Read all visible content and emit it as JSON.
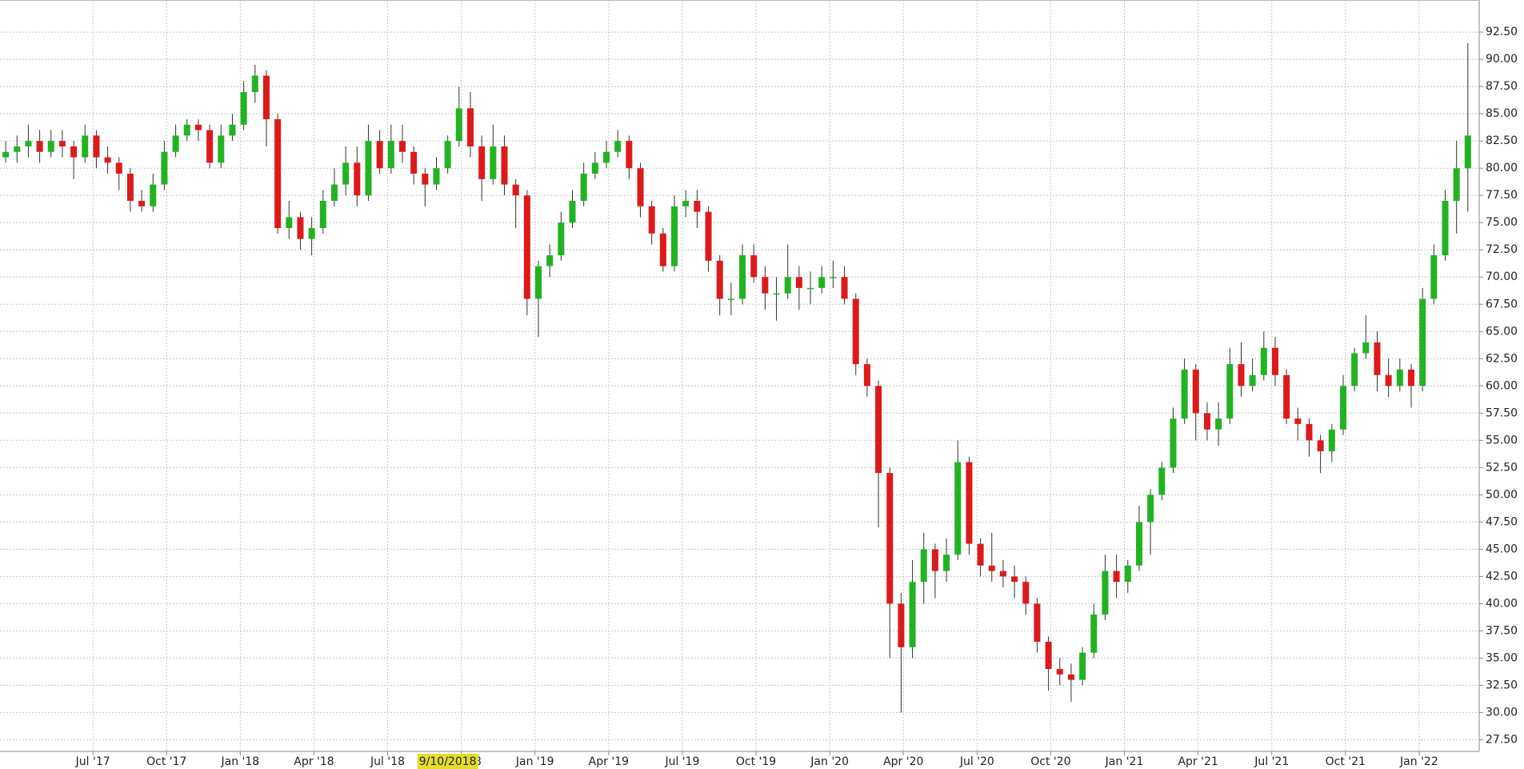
{
  "chart_data": {
    "type": "candlestick",
    "colors": {
      "up": "#22b322",
      "down": "#dd1a1a"
    },
    "grid": true,
    "xlim": [
      0,
      261
    ],
    "ylim": [
      26.43,
      95.45
    ],
    "yticks": [
      {
        "value": 27.5,
        "label": "27.50"
      },
      {
        "value": 30,
        "label": "30.00"
      },
      {
        "value": 32.5,
        "label": "32.50"
      },
      {
        "value": 35,
        "label": "35.00"
      },
      {
        "value": 37.5,
        "label": "37.50"
      },
      {
        "value": 40,
        "label": "40.00"
      },
      {
        "value": 42.5,
        "label": "42.50"
      },
      {
        "value": 45,
        "label": "45.00"
      },
      {
        "value": 47.5,
        "label": "47.50"
      },
      {
        "value": 50,
        "label": "50.00"
      },
      {
        "value": 52.5,
        "label": "52.50"
      },
      {
        "value": 55,
        "label": "55.00"
      },
      {
        "value": 57.5,
        "label": "57.50"
      },
      {
        "value": 60,
        "label": "60.00"
      },
      {
        "value": 62.5,
        "label": "62.50"
      },
      {
        "value": 65,
        "label": "65.00"
      },
      {
        "value": 67.5,
        "label": "67.50"
      },
      {
        "value": 70,
        "label": "70.00"
      },
      {
        "value": 72.5,
        "label": "72.50"
      },
      {
        "value": 75,
        "label": "75.00"
      },
      {
        "value": 77.5,
        "label": "77.50"
      },
      {
        "value": 80,
        "label": "80.00"
      },
      {
        "value": 82.5,
        "label": "82.50"
      },
      {
        "value": 85,
        "label": "85.00"
      },
      {
        "value": 87.5,
        "label": "87.50"
      },
      {
        "value": 90,
        "label": "90.00"
      },
      {
        "value": 92.5,
        "label": "92.50"
      }
    ],
    "xticks": [
      {
        "value": 16.4,
        "label": "Jul '17"
      },
      {
        "value": 29.4,
        "label": "Oct '17"
      },
      {
        "value": 42.4,
        "label": "Jan '18"
      },
      {
        "value": 55.4,
        "label": "Apr '18"
      },
      {
        "value": 68.4,
        "label": "Jul '18"
      },
      {
        "value": 81.4,
        "label": "Oct '18"
      },
      {
        "value": 94.4,
        "label": "Jan '19"
      },
      {
        "value": 107.4,
        "label": "Apr '19"
      },
      {
        "value": 120.4,
        "label": "Jul '19"
      },
      {
        "value": 133.4,
        "label": "Oct '19"
      },
      {
        "value": 146.4,
        "label": "Jan '20"
      },
      {
        "value": 159.4,
        "label": "Apr '20"
      },
      {
        "value": 172.4,
        "label": "Jul '20"
      },
      {
        "value": 185.4,
        "label": "Oct '20"
      },
      {
        "value": 198.4,
        "label": "Jan '21"
      },
      {
        "value": 211.4,
        "label": "Apr '21"
      },
      {
        "value": 224.4,
        "label": "Jul '21"
      },
      {
        "value": 237.4,
        "label": "Oct '21"
      },
      {
        "value": 250.4,
        "label": "Jan '22"
      }
    ],
    "cursor": {
      "x": 79,
      "label": "9/10/2018"
    },
    "x": [
      1,
      3,
      5,
      7,
      9,
      11,
      13,
      15,
      17,
      19,
      21,
      23,
      25,
      27,
      29,
      31,
      33,
      35,
      37,
      39,
      41,
      43,
      45,
      47,
      49,
      51,
      53,
      55,
      57,
      59,
      61,
      63,
      65,
      67,
      69,
      71,
      73,
      75,
      77,
      79,
      81,
      83,
      85,
      87,
      89,
      91,
      93,
      95,
      97,
      99,
      101,
      103,
      105,
      107,
      109,
      111,
      113,
      115,
      117,
      119,
      121,
      123,
      125,
      127,
      129,
      131,
      133,
      135,
      137,
      139,
      141,
      143,
      145,
      147,
      149,
      151,
      153,
      155,
      157,
      159,
      161,
      163,
      165,
      167,
      169,
      171,
      173,
      175,
      177,
      179,
      181,
      183,
      185,
      187,
      189,
      191,
      193,
      195,
      197,
      199,
      201,
      203,
      205,
      207,
      209,
      211,
      213,
      215,
      217,
      219,
      221,
      223,
      225,
      227,
      229,
      231,
      233,
      235,
      237,
      239,
      241,
      243,
      245,
      247,
      249,
      251,
      253,
      255,
      257,
      259
    ],
    "ohlc": [
      [
        81,
        82.5,
        80.5,
        81.5
      ],
      [
        81.5,
        83,
        80.5,
        82
      ],
      [
        82,
        84,
        81,
        82.5
      ],
      [
        82.5,
        83.5,
        80.5,
        81.5
      ],
      [
        81.5,
        83.5,
        81,
        82.5
      ],
      [
        82.5,
        83.5,
        81,
        82
      ],
      [
        82,
        82.5,
        79,
        81
      ],
      [
        81,
        84,
        80.5,
        83
      ],
      [
        83,
        83.5,
        80,
        81
      ],
      [
        81,
        82,
        79.5,
        80.5
      ],
      [
        80.5,
        81,
        78,
        79.5
      ],
      [
        79.5,
        80,
        76,
        77
      ],
      [
        77,
        78,
        76,
        76.5
      ],
      [
        76.5,
        79.5,
        76,
        78.5
      ],
      [
        78.5,
        82.5,
        78,
        81.5
      ],
      [
        81.5,
        84,
        81,
        83
      ],
      [
        83,
        84.5,
        82.5,
        84
      ],
      [
        84,
        84.5,
        82.5,
        83.5
      ],
      [
        83.5,
        84,
        80,
        80.5
      ],
      [
        80.5,
        84,
        80,
        83
      ],
      [
        83,
        85,
        82.5,
        84
      ],
      [
        84,
        88,
        83.5,
        87
      ],
      [
        87,
        89.5,
        86,
        88.5
      ],
      [
        88.5,
        89,
        82,
        84.5
      ],
      [
        84.5,
        85,
        74,
        74.5
      ],
      [
        74.5,
        77,
        73.5,
        75.5
      ],
      [
        75.5,
        76,
        72.5,
        73.5
      ],
      [
        73.5,
        75.5,
        72,
        74.5
      ],
      [
        74.5,
        78,
        74,
        77
      ],
      [
        77,
        80,
        76.5,
        78.5
      ],
      [
        78.5,
        82,
        77.5,
        80.5
      ],
      [
        80.5,
        82,
        76.5,
        77.5
      ],
      [
        77.5,
        84,
        77,
        82.5
      ],
      [
        82.5,
        83.5,
        79.5,
        80
      ],
      [
        80,
        84,
        79.5,
        82.5
      ],
      [
        82.5,
        84,
        80.5,
        81.5
      ],
      [
        81.5,
        82,
        78.5,
        79.5
      ],
      [
        79.5,
        80,
        76.5,
        78.5
      ],
      [
        78.5,
        81,
        78,
        80
      ],
      [
        80,
        83,
        79.5,
        82.5
      ],
      [
        82.5,
        87.5,
        82,
        85.5
      ],
      [
        85.5,
        87,
        81,
        82
      ],
      [
        82,
        83,
        77,
        79
      ],
      [
        79,
        84,
        78.5,
        82
      ],
      [
        82,
        83,
        77.5,
        78.5
      ],
      [
        78.5,
        79,
        74.5,
        77.5
      ],
      [
        77.5,
        78,
        66.5,
        68
      ],
      [
        68,
        71.5,
        64.5,
        71
      ],
      [
        71,
        73,
        70,
        72
      ],
      [
        72,
        76,
        71.5,
        75
      ],
      [
        75,
        78,
        74.5,
        77
      ],
      [
        77,
        80.5,
        76.5,
        79.5
      ],
      [
        79.5,
        81.5,
        79,
        80.5
      ],
      [
        80.5,
        82.5,
        80,
        81.5
      ],
      [
        81.5,
        83.5,
        81,
        82.5
      ],
      [
        82.5,
        83,
        79,
        80
      ],
      [
        80,
        80.5,
        75.5,
        76.5
      ],
      [
        76.5,
        77,
        73,
        74
      ],
      [
        74,
        74.5,
        70.5,
        71
      ],
      [
        71,
        77.5,
        70.5,
        76.5
      ],
      [
        76.5,
        78,
        75.5,
        77
      ],
      [
        77,
        78,
        74.5,
        76
      ],
      [
        76,
        76.5,
        70.5,
        71.5
      ],
      [
        71.5,
        72,
        66.5,
        68
      ],
      [
        68,
        69.5,
        66.5,
        68
      ],
      [
        68,
        73,
        67.5,
        72
      ],
      [
        72,
        73,
        69.5,
        70
      ],
      [
        70,
        71,
        67,
        68.5
      ],
      [
        68.5,
        70,
        66,
        68.5
      ],
      [
        68.5,
        73,
        68,
        70
      ],
      [
        70,
        71,
        67,
        69
      ],
      [
        69,
        70.5,
        67.5,
        69
      ],
      [
        69,
        71,
        68.5,
        70
      ],
      [
        70,
        71.5,
        69,
        70
      ],
      [
        70,
        71,
        67.5,
        68
      ],
      [
        68,
        68.5,
        61,
        62
      ],
      [
        62,
        62.5,
        59,
        60
      ],
      [
        60,
        60.5,
        47,
        52
      ],
      [
        52,
        52.5,
        35,
        40
      ],
      [
        40,
        41,
        30,
        36
      ],
      [
        36,
        44,
        35,
        42
      ],
      [
        42,
        46.5,
        40,
        45
      ],
      [
        45,
        45.5,
        40.5,
        43
      ],
      [
        43,
        46,
        42,
        44.5
      ],
      [
        44.5,
        55,
        44,
        53
      ],
      [
        53,
        53.5,
        44.5,
        45.5
      ],
      [
        45.5,
        46,
        42.5,
        43.5
      ],
      [
        43.5,
        46.5,
        42,
        43
      ],
      [
        43,
        44,
        41.5,
        42.5
      ],
      [
        42.5,
        43.5,
        40.5,
        42
      ],
      [
        42,
        42.5,
        39,
        40
      ],
      [
        40,
        40.5,
        35.5,
        36.5
      ],
      [
        36.5,
        37,
        32,
        34
      ],
      [
        34,
        35,
        32.5,
        33.5
      ],
      [
        33.5,
        34.5,
        31,
        33
      ],
      [
        33,
        36,
        32.5,
        35.5
      ],
      [
        35.5,
        40,
        35,
        39
      ],
      [
        39,
        44.5,
        38.5,
        43
      ],
      [
        43,
        44.5,
        40.5,
        42
      ],
      [
        42,
        44,
        41,
        43.5
      ],
      [
        43.5,
        49,
        43,
        47.5
      ],
      [
        47.5,
        50.5,
        44.5,
        50
      ],
      [
        50,
        53,
        49.5,
        52.5
      ],
      [
        52.5,
        58,
        52,
        57
      ],
      [
        57,
        62.5,
        56.5,
        61.5
      ],
      [
        61.5,
        62,
        55,
        57.5
      ],
      [
        57.5,
        58.5,
        55,
        56
      ],
      [
        56,
        58.5,
        54.5,
        57
      ],
      [
        57,
        63.5,
        56.5,
        62
      ],
      [
        62,
        64,
        59,
        60
      ],
      [
        60,
        62.5,
        59.5,
        61
      ],
      [
        61,
        65,
        60.5,
        63.5
      ],
      [
        63.5,
        64.5,
        60,
        61
      ],
      [
        61,
        61.5,
        56.5,
        57
      ],
      [
        57,
        58,
        55,
        56.5
      ],
      [
        56.5,
        57,
        53.5,
        55
      ],
      [
        55,
        55.5,
        52,
        54
      ],
      [
        54,
        56.5,
        53,
        56
      ],
      [
        56,
        61,
        55.5,
        60
      ],
      [
        60,
        63.5,
        59.5,
        63
      ],
      [
        63,
        66.5,
        62.5,
        64
      ],
      [
        64,
        65,
        59.5,
        61
      ],
      [
        61,
        62.5,
        59,
        60
      ],
      [
        60,
        62.5,
        59.5,
        61.5
      ],
      [
        61.5,
        62,
        58,
        60
      ],
      [
        60,
        69,
        59.5,
        68
      ],
      [
        68,
        73,
        67.5,
        72
      ],
      [
        72,
        78,
        71.5,
        77
      ],
      [
        77,
        82.5,
        74,
        80
      ],
      [
        80,
        91.5,
        76,
        83
      ]
    ]
  }
}
